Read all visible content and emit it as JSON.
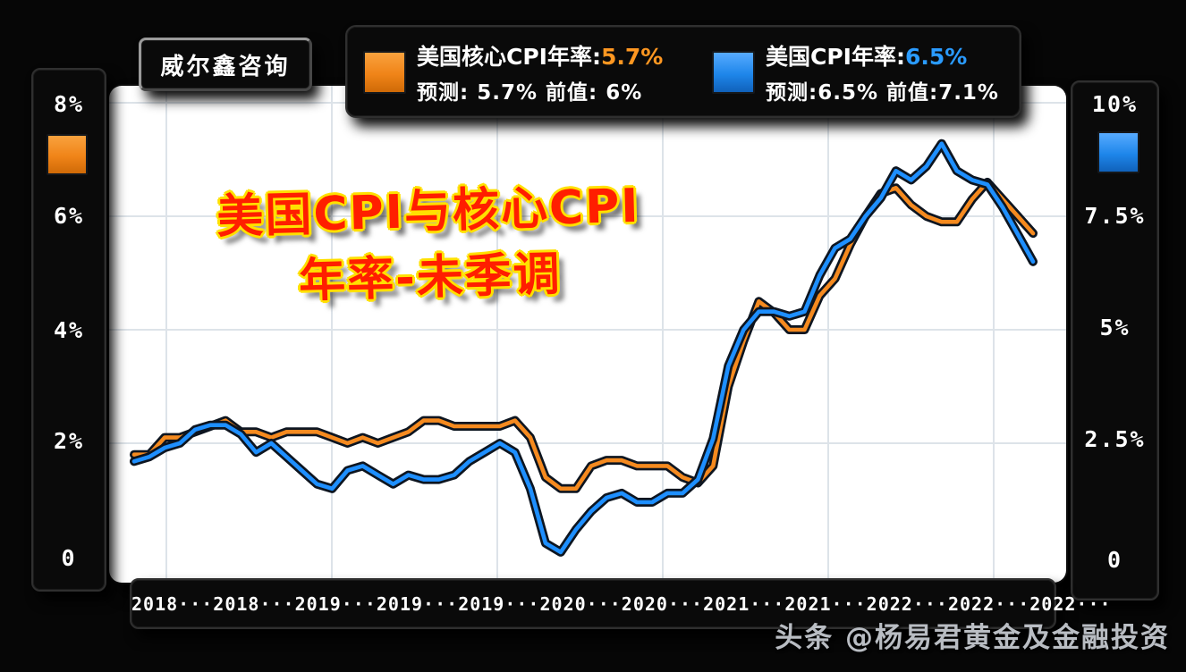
{
  "brand_box": {
    "label": "威尔鑫咨询"
  },
  "legend": {
    "core": {
      "label": "美国核心CPI年率:",
      "value": "5.7%",
      "sub": "预测: 5.7%  前值: 6%"
    },
    "cpi": {
      "label": "美国CPI年率:",
      "value": "6.5%",
      "sub": "预测:6.5%  前值:7.1%"
    }
  },
  "overlay_title": {
    "line1": "美国CPI与核心CPI",
    "line2": "年率-未季调"
  },
  "left_axis": {
    "ticks": [
      "8%",
      "6%",
      "4%",
      "2%",
      "0"
    ]
  },
  "right_axis": {
    "ticks": [
      "10%",
      "7.5%",
      "5%",
      "2.5%",
      "0"
    ]
  },
  "x_axis": {
    "labels": [
      "2018···",
      "2018···",
      "2019···",
      "2019···",
      "2019···",
      "2020···",
      "2020···",
      "2021···",
      "2021···",
      "2022···",
      "2022···",
      "2022···"
    ]
  },
  "watermark": "头条 @杨易君黄金及金融投资",
  "colors": {
    "core_orange": "#f58a1f",
    "cpi_blue": "#1e8fff",
    "title_red": "#ff1e00",
    "title_outline_yellow": "#ffe000",
    "panel_black": "#0a0a0a",
    "plot_white": "#ffffff"
  },
  "chart_data": {
    "type": "line",
    "title": "美国CPI与核心CPI年率-未季调",
    "x_tick_labels": [
      "2018···",
      "2018···",
      "2019···",
      "2019···",
      "2019···",
      "2020···",
      "2020···",
      "2021···",
      "2021···",
      "2022···",
      "2022···",
      "2022···"
    ],
    "left_axis_ticks": [
      0,
      2,
      4,
      6,
      8
    ],
    "right_axis_ticks": [
      0,
      2.5,
      5,
      7.5,
      10
    ],
    "left_ylim": [
      0,
      8
    ],
    "right_ylim": [
      0,
      10
    ],
    "grid": true,
    "legend_position": "top",
    "x": [
      "2018-01",
      "2018-02",
      "2018-03",
      "2018-04",
      "2018-05",
      "2018-06",
      "2018-07",
      "2018-08",
      "2018-09",
      "2018-10",
      "2018-11",
      "2018-12",
      "2019-01",
      "2019-02",
      "2019-03",
      "2019-04",
      "2019-05",
      "2019-06",
      "2019-07",
      "2019-08",
      "2019-09",
      "2019-10",
      "2019-11",
      "2019-12",
      "2020-01",
      "2020-02",
      "2020-03",
      "2020-04",
      "2020-05",
      "2020-06",
      "2020-07",
      "2020-08",
      "2020-09",
      "2020-10",
      "2020-11",
      "2020-12",
      "2021-01",
      "2021-02",
      "2021-03",
      "2021-04",
      "2021-05",
      "2021-06",
      "2021-07",
      "2021-08",
      "2021-09",
      "2021-10",
      "2021-11",
      "2021-12",
      "2022-01",
      "2022-02",
      "2022-03",
      "2022-04",
      "2022-05",
      "2022-06",
      "2022-07",
      "2022-08",
      "2022-09",
      "2022-10",
      "2022-11",
      "2022-12"
    ],
    "series": [
      {
        "name": "美国核心CPI年率",
        "axis": "left",
        "axis_max": 8,
        "color": "#f58a1f",
        "current": 5.7,
        "forecast": 5.7,
        "previous": 6.0,
        "values": [
          1.8,
          1.8,
          2.1,
          2.1,
          2.2,
          2.3,
          2.4,
          2.2,
          2.2,
          2.1,
          2.2,
          2.2,
          2.2,
          2.1,
          2.0,
          2.1,
          2.0,
          2.1,
          2.2,
          2.4,
          2.4,
          2.3,
          2.3,
          2.3,
          2.3,
          2.4,
          2.1,
          1.4,
          1.2,
          1.2,
          1.6,
          1.7,
          1.7,
          1.6,
          1.6,
          1.6,
          1.4,
          1.3,
          1.6,
          3.0,
          3.8,
          4.5,
          4.3,
          4.0,
          4.0,
          4.6,
          4.9,
          5.5,
          6.0,
          6.4,
          6.5,
          6.2,
          6.0,
          5.9,
          5.9,
          6.3,
          6.6,
          6.3,
          6.0,
          5.7
        ]
      },
      {
        "name": "美国CPI年率",
        "axis": "right",
        "axis_max": 10,
        "color": "#1e8fff",
        "current": 6.5,
        "forecast": 6.5,
        "previous": 7.1,
        "values": [
          2.1,
          2.2,
          2.4,
          2.5,
          2.8,
          2.9,
          2.9,
          2.7,
          2.3,
          2.5,
          2.2,
          1.9,
          1.6,
          1.5,
          1.9,
          2.0,
          1.8,
          1.6,
          1.8,
          1.7,
          1.7,
          1.8,
          2.1,
          2.3,
          2.5,
          2.3,
          1.5,
          0.3,
          0.1,
          0.6,
          1.0,
          1.3,
          1.4,
          1.2,
          1.2,
          1.4,
          1.4,
          1.7,
          2.6,
          4.2,
          5.0,
          5.4,
          5.4,
          5.3,
          5.4,
          6.2,
          6.8,
          7.0,
          7.5,
          7.9,
          8.5,
          8.3,
          8.6,
          9.1,
          8.5,
          8.3,
          8.2,
          7.7,
          7.1,
          6.5
        ]
      }
    ]
  }
}
